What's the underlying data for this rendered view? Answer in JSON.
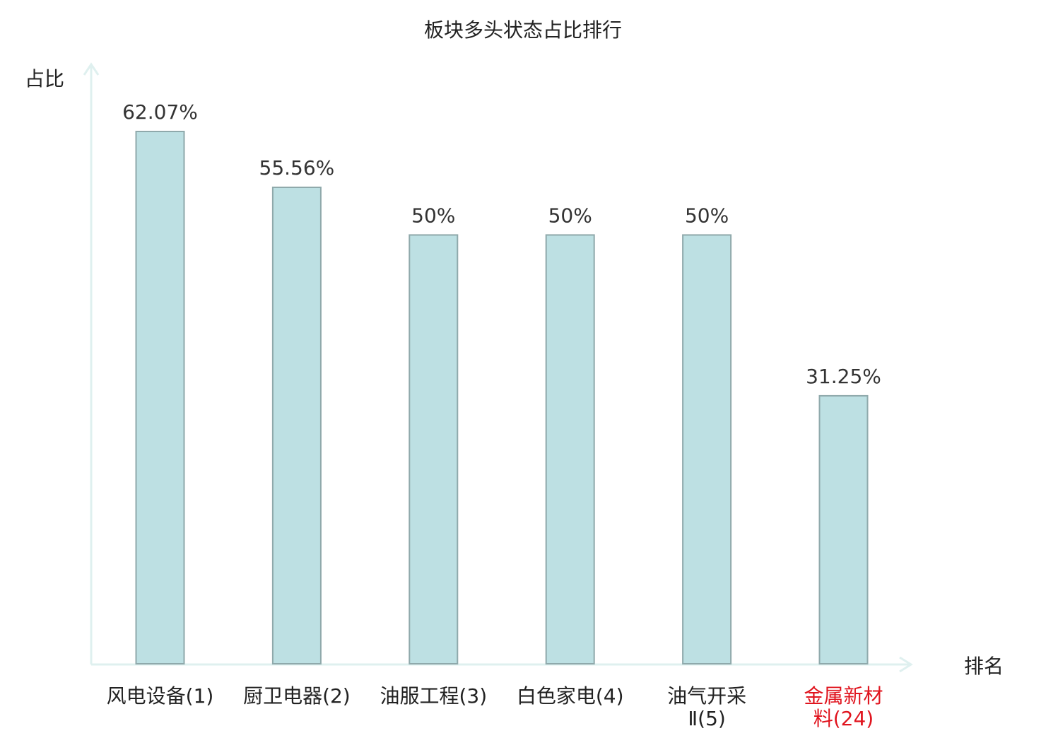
{
  "chart_data": {
    "type": "bar",
    "title": "板块多头状态占比排行",
    "xlabel": "排名",
    "ylabel": "占比",
    "ylim": [
      0,
      70
    ],
    "grid": false,
    "legend": "none",
    "categories": [
      {
        "name": "风电设备",
        "rank": "(1)",
        "lines": [
          "风电设备(1)"
        ],
        "highlight": false
      },
      {
        "name": "厨卫电器",
        "rank": "(2)",
        "lines": [
          "厨卫电器(2)"
        ],
        "highlight": false
      },
      {
        "name": "油服工程",
        "rank": "(3)",
        "lines": [
          "油服工程(3)"
        ],
        "highlight": false
      },
      {
        "name": "白色家电",
        "rank": "(4)",
        "lines": [
          "白色家电(4)"
        ],
        "highlight": false
      },
      {
        "name": "油气开采Ⅱ",
        "rank": "(5)",
        "lines": [
          "油气开采",
          "Ⅱ(5)"
        ],
        "highlight": false
      },
      {
        "name": "金属新材料",
        "rank": "(24)",
        "lines": [
          "金属新材",
          "料(24)"
        ],
        "highlight": true
      }
    ],
    "values": [
      62.07,
      55.56,
      50,
      50,
      50,
      31.25
    ],
    "value_labels": [
      "62.07%",
      "55.56%",
      "50%",
      "50%",
      "50%",
      "31.25%"
    ]
  },
  "colors": {
    "bar_fill": "#bde0e3",
    "bar_stroke": "#8fa9ab",
    "axis": "#dff0ef",
    "text": "#222222",
    "highlight_text": "#e0141e"
  }
}
